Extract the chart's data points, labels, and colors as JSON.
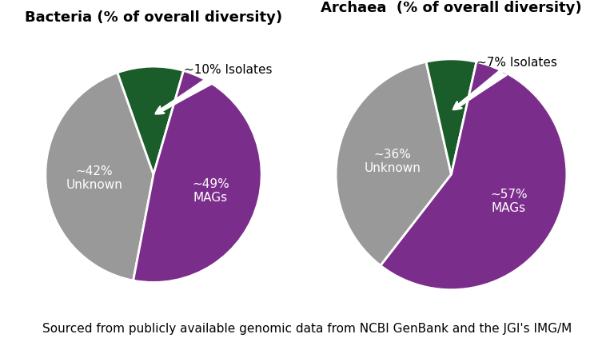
{
  "bacteria": {
    "title": "Bacteria (% of overall diversity)",
    "slices": [
      42,
      10,
      49
    ],
    "colors": [
      "#999999",
      "#1a5c2a",
      "#7b2d8b"
    ],
    "unknown_label": "~42%\nUnknown",
    "mags_label": "~49%\nMAGs",
    "isolates_label": "~10% Isolates",
    "bact_startangle": 259.2
  },
  "archaea": {
    "title": "Archaea  (% of overall diversity)",
    "slices": [
      36,
      7,
      57
    ],
    "colors": [
      "#999999",
      "#1a5c2a",
      "#7b2d8b"
    ],
    "unknown_label": "~36%\nUnknown",
    "mags_label": "~57%\nMAGs",
    "isolates_label": "~7% Isolates",
    "arch_startangle": 232.2
  },
  "footnote": "Sourced from publicly available genomic data from NCBI GenBank and the JGI's IMG/M",
  "background_color": "#ffffff",
  "title_fontsize": 13,
  "label_fontsize": 11,
  "footnote_fontsize": 11
}
